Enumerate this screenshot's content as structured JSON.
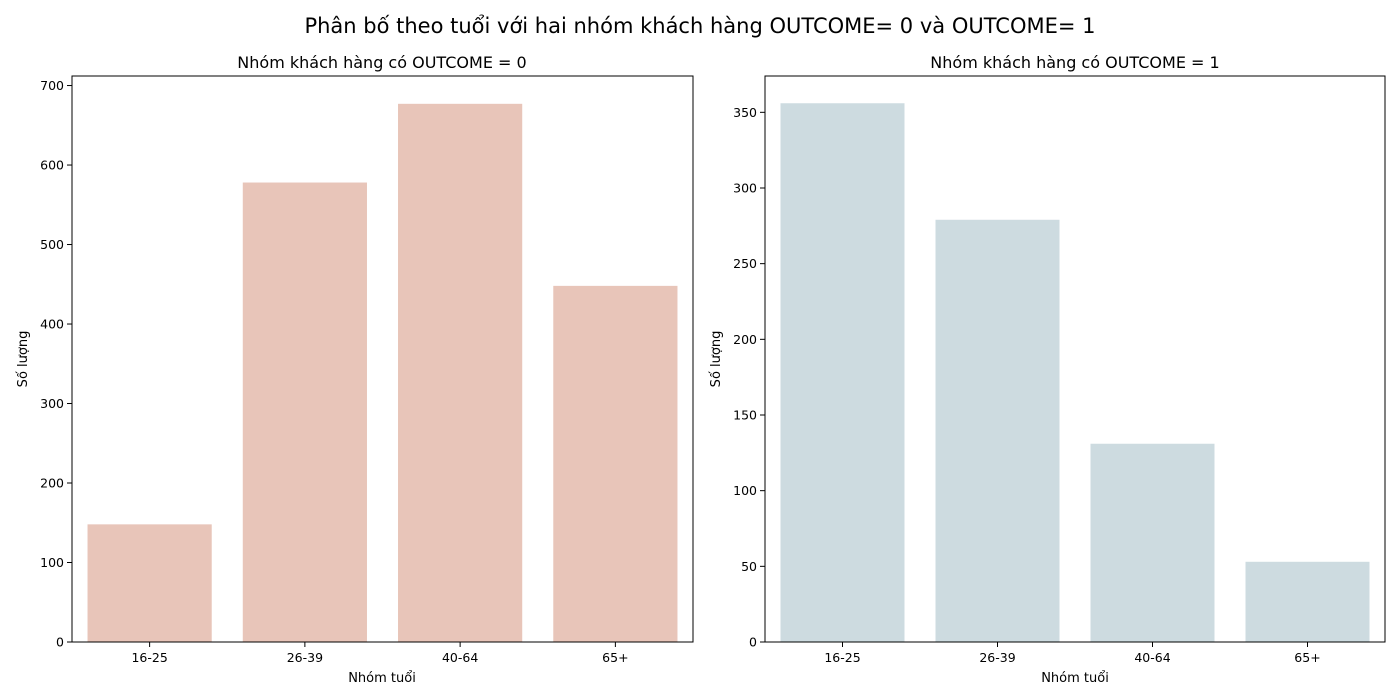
{
  "figure": {
    "title": "Phân bố theo tuổi với hai nhóm khách hàng OUTCOME= 0 và OUTCOME= 1"
  },
  "chart_data": [
    {
      "type": "bar",
      "title": "Nhóm khách hàng có OUTCOME = 0",
      "xlabel": "Nhóm tuổi",
      "ylabel": "Số lượng",
      "categories": [
        "16-25",
        "26-39",
        "40-64",
        "65+"
      ],
      "values": [
        148,
        578,
        677,
        448
      ],
      "ylim": [
        0,
        712
      ],
      "yticks": [
        0,
        100,
        200,
        300,
        400,
        500,
        600,
        700
      ],
      "color": "#e8c5b9",
      "grid": false,
      "legend": "none"
    },
    {
      "type": "bar",
      "title": "Nhóm khách hàng có OUTCOME = 1",
      "xlabel": "Nhóm tuổi",
      "ylabel": "Số lượng",
      "categories": [
        "16-25",
        "26-39",
        "40-64",
        "65+"
      ],
      "values": [
        356,
        279,
        131,
        53
      ],
      "ylim": [
        0,
        374
      ],
      "yticks": [
        0,
        50,
        100,
        150,
        200,
        250,
        300,
        350
      ],
      "color": "#cddbe0",
      "grid": false,
      "legend": "none"
    }
  ]
}
